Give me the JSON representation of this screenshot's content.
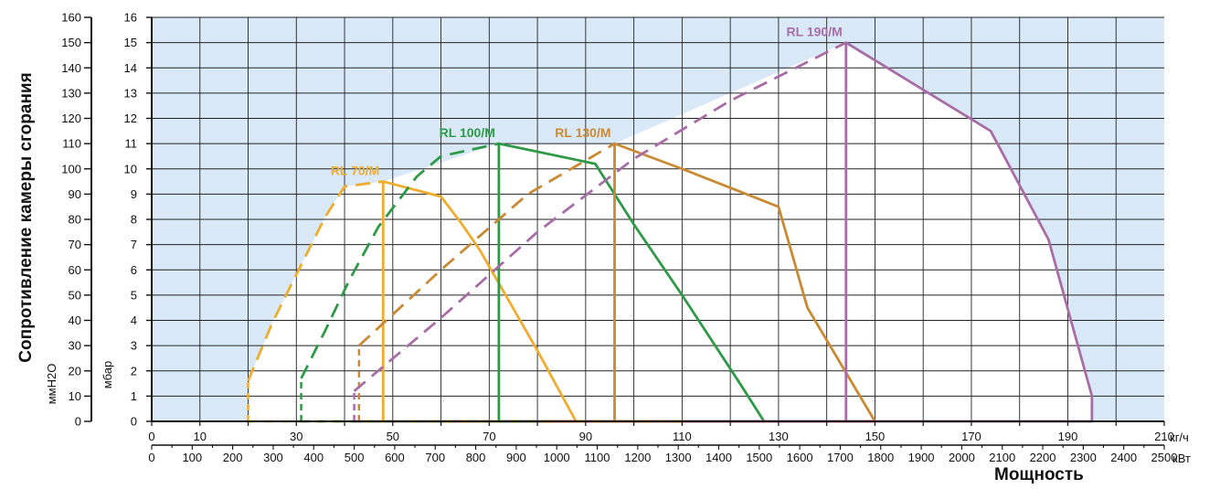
{
  "chart_data": {
    "type": "line",
    "title": "",
    "ylabel": "Сопротивление камеры сгорания",
    "ylabel_unit_left": "ммH2O",
    "ylabel_unit_right": "мбар",
    "xlabel": "Мощность",
    "x_unit_top": "кг/ч",
    "x_unit_bottom": "кВт",
    "grid": true,
    "x_top": {
      "range": [
        0,
        210
      ],
      "ticks": [
        0,
        10,
        30,
        50,
        70,
        90,
        110,
        130,
        150,
        170,
        190,
        210
      ]
    },
    "x_bottom": {
      "range": [
        0,
        2500
      ],
      "ticks": [
        0,
        100,
        200,
        300,
        400,
        500,
        600,
        700,
        800,
        900,
        1000,
        1100,
        1200,
        1300,
        1400,
        1500,
        1600,
        1700,
        1800,
        1900,
        2000,
        2100,
        2200,
        2300,
        2400,
        2500
      ]
    },
    "y_left": {
      "range": [
        0,
        160
      ],
      "ticks": [
        0,
        10,
        20,
        30,
        40,
        50,
        60,
        70,
        80,
        90,
        100,
        110,
        120,
        130,
        140,
        150,
        160
      ]
    },
    "y_right": {
      "range": [
        0,
        16
      ],
      "ticks": [
        0,
        1,
        2,
        3,
        4,
        5,
        6,
        7,
        8,
        9,
        10,
        11,
        12,
        13,
        14,
        15,
        16
      ]
    },
    "series": [
      {
        "name": "RL 70/M",
        "color": "#F0AC2E",
        "solid": [
          [
            60,
            0
          ],
          [
            88,
            0
          ],
          [
            80,
            2.8
          ],
          [
            68,
            6.8
          ],
          [
            64,
            7.9
          ],
          [
            60,
            8.9
          ],
          [
            48,
            9.5
          ],
          [
            48,
            0
          ]
        ],
        "dashed": [
          [
            20,
            1.6
          ],
          [
            25,
            3.9
          ],
          [
            31,
            6.2
          ],
          [
            36,
            8.1
          ],
          [
            40,
            9.3
          ],
          [
            48,
            9.5
          ]
        ],
        "dashed_vertical": [
          [
            20,
            0
          ],
          [
            20,
            1.6
          ]
        ],
        "baseline_dashed": [
          [
            20,
            0
          ],
          [
            60,
            0
          ]
        ]
      },
      {
        "name": "RL 100/M",
        "color": "#2E9A48",
        "solid": [
          [
            72,
            0
          ],
          [
            127,
            0
          ],
          [
            122,
            1.5
          ],
          [
            110,
            5.0
          ],
          [
            100,
            7.8
          ],
          [
            92,
            10.2
          ],
          [
            72,
            11.0
          ],
          [
            72,
            0
          ]
        ],
        "dashed": [
          [
            31,
            1.7
          ],
          [
            36,
            3.6
          ],
          [
            41,
            5.6
          ],
          [
            47,
            7.7
          ],
          [
            55,
            9.7
          ],
          [
            60,
            10.5
          ],
          [
            72,
            11.0
          ]
        ],
        "dashed_vertical": [
          [
            31,
            0
          ],
          [
            31,
            1.7
          ]
        ],
        "baseline_dashed": [
          [
            31,
            0
          ],
          [
            72,
            0
          ]
        ]
      },
      {
        "name": "RL 130/M",
        "color": "#C98A33",
        "solid": [
          [
            80,
            0
          ],
          [
            150,
            0
          ],
          [
            136,
            4.5
          ],
          [
            130,
            8.5
          ],
          [
            110,
            10.0
          ],
          [
            96,
            11.0
          ],
          [
            96,
            0
          ]
        ],
        "dashed": [
          [
            43,
            3.0
          ],
          [
            60,
            6.0
          ],
          [
            78,
            9.0
          ],
          [
            96,
            11.0
          ]
        ],
        "dashed_vertical": [
          [
            43,
            0
          ],
          [
            43,
            3.0
          ]
        ],
        "baseline_dashed": [
          [
            43,
            0
          ],
          [
            96,
            0
          ]
        ]
      },
      {
        "name": "RL 190/M",
        "color": "#A86DA7",
        "solid": [
          [
            110,
            0
          ],
          [
            195,
            0
          ],
          [
            195,
            1.0
          ],
          [
            186,
            7.2
          ],
          [
            174,
            11.5
          ],
          [
            144,
            15.0
          ],
          [
            144,
            0
          ]
        ],
        "dashed": [
          [
            42,
            1.2
          ],
          [
            60,
            4.1
          ],
          [
            80,
            7.5
          ],
          [
            100,
            10.4
          ],
          [
            120,
            12.7
          ],
          [
            144,
            15.0
          ]
        ],
        "dashed_vertical": [
          [
            42,
            0
          ],
          [
            42,
            1.2
          ]
        ],
        "baseline_dashed": [
          [
            42,
            0
          ],
          [
            110,
            0
          ]
        ]
      }
    ]
  }
}
